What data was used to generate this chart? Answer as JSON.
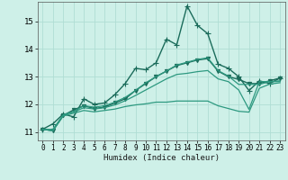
{
  "bg_color": "#cef0e8",
  "grid_color": "#b0ddd4",
  "line_color_dark": "#1a6b5a",
  "line_color_light": "#2d9980",
  "xlabel": "Humidex (Indice chaleur)",
  "xlim": [
    -0.5,
    23.5
  ],
  "ylim": [
    10.7,
    15.7
  ],
  "yticks": [
    11,
    12,
    13,
    14,
    15
  ],
  "xticks": [
    0,
    1,
    2,
    3,
    4,
    5,
    6,
    7,
    8,
    9,
    10,
    11,
    12,
    13,
    14,
    15,
    16,
    17,
    18,
    19,
    20,
    21,
    22,
    23
  ],
  "series": [
    {
      "x": [
        0,
        1,
        2,
        3,
        4,
        5,
        6,
        7,
        8,
        9,
        10,
        11,
        12,
        13,
        14,
        15,
        16,
        17,
        18,
        19,
        20,
        21,
        22,
        23
      ],
      "y": [
        11.1,
        11.3,
        11.65,
        11.55,
        12.2,
        12.0,
        12.05,
        12.35,
        12.75,
        13.3,
        13.25,
        13.5,
        14.35,
        14.15,
        15.55,
        14.85,
        14.55,
        13.45,
        13.3,
        13.0,
        12.5,
        12.85,
        12.75,
        12.95
      ],
      "marker": "+",
      "lw": 1.0,
      "ms": 4,
      "color": "#1a6b5a"
    },
    {
      "x": [
        0,
        1,
        2,
        3,
        4,
        5,
        6,
        7,
        8,
        9,
        10,
        11,
        12,
        13,
        14,
        15,
        16,
        17,
        18,
        19,
        20,
        21,
        22,
        23
      ],
      "y": [
        11.1,
        11.05,
        11.6,
        11.8,
        11.95,
        11.85,
        11.9,
        12.05,
        12.2,
        12.5,
        12.75,
        13.0,
        13.2,
        13.4,
        13.5,
        13.6,
        13.65,
        13.2,
        13.0,
        12.9,
        12.75,
        12.75,
        12.85,
        12.95
      ],
      "marker": "v",
      "lw": 1.0,
      "ms": 3,
      "color": "#1a6b5a"
    },
    {
      "x": [
        0,
        1,
        2,
        3,
        4,
        5,
        6,
        7,
        8,
        9,
        10,
        11,
        12,
        13,
        14,
        15,
        16,
        17,
        18,
        19,
        20,
        21,
        22,
        23
      ],
      "y": [
        11.1,
        11.1,
        11.62,
        11.75,
        11.95,
        11.9,
        11.95,
        12.08,
        12.25,
        12.5,
        12.78,
        13.0,
        13.2,
        13.42,
        13.52,
        13.62,
        13.68,
        13.22,
        13.02,
        12.72,
        12.72,
        12.72,
        12.82,
        12.82
      ],
      "marker": null,
      "lw": 0.9,
      "ms": 0,
      "color": "#2d9980"
    },
    {
      "x": [
        0,
        1,
        2,
        3,
        4,
        5,
        6,
        7,
        8,
        9,
        10,
        11,
        12,
        13,
        14,
        15,
        16,
        17,
        18,
        19,
        20,
        21,
        22,
        23
      ],
      "y": [
        11.1,
        11.05,
        11.62,
        11.72,
        11.88,
        11.83,
        11.88,
        11.98,
        12.13,
        12.32,
        12.52,
        12.72,
        12.92,
        13.08,
        13.12,
        13.18,
        13.22,
        12.92,
        12.82,
        12.52,
        11.82,
        12.82,
        12.82,
        12.85
      ],
      "marker": null,
      "lw": 0.9,
      "ms": 0,
      "color": "#2d9980"
    },
    {
      "x": [
        0,
        1,
        2,
        3,
        4,
        5,
        6,
        7,
        8,
        9,
        10,
        11,
        12,
        13,
        14,
        15,
        16,
        17,
        18,
        19,
        20,
        21,
        22,
        23
      ],
      "y": [
        11.1,
        11.05,
        11.58,
        11.68,
        11.78,
        11.73,
        11.78,
        11.83,
        11.92,
        11.98,
        12.02,
        12.08,
        12.08,
        12.12,
        12.12,
        12.12,
        12.12,
        11.95,
        11.85,
        11.75,
        11.72,
        12.58,
        12.73,
        12.78
      ],
      "marker": null,
      "lw": 0.9,
      "ms": 0,
      "color": "#2d9980"
    }
  ]
}
